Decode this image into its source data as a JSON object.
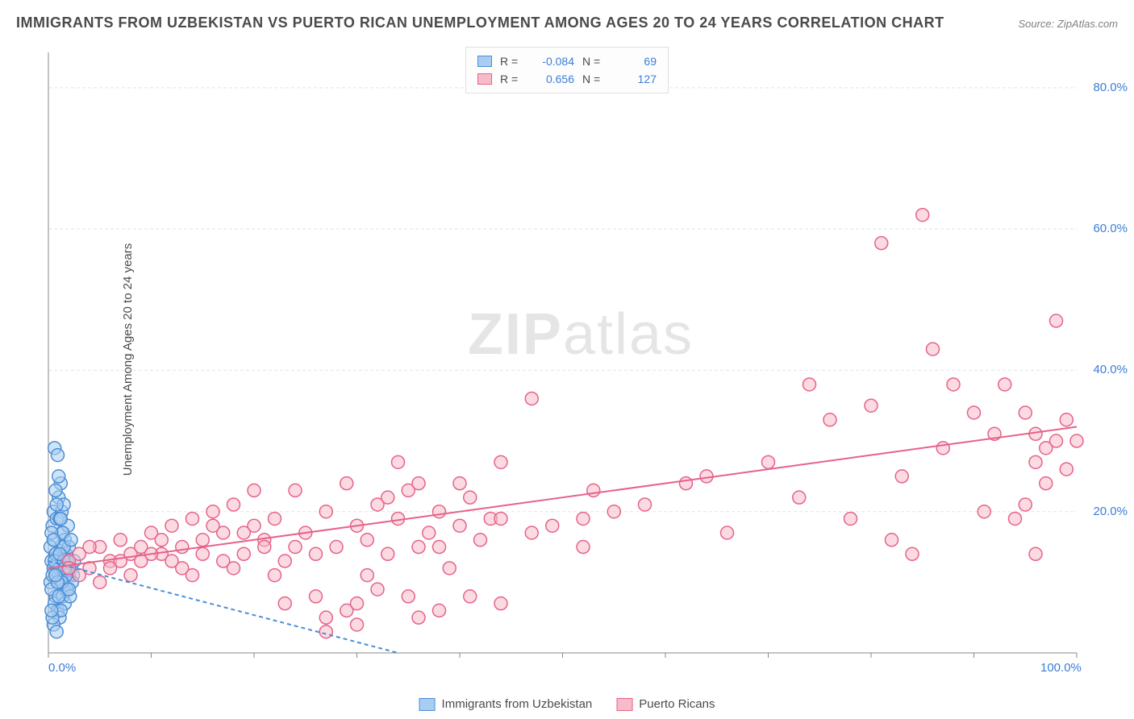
{
  "title": "IMMIGRANTS FROM UZBEKISTAN VS PUERTO RICAN UNEMPLOYMENT AMONG AGES 20 TO 24 YEARS CORRELATION CHART",
  "source": "Source: ZipAtlas.com",
  "ylabel": "Unemployment Among Ages 20 to 24 years",
  "watermark_a": "ZIP",
  "watermark_b": "atlas",
  "chart": {
    "type": "scatter",
    "xlim": [
      0,
      100
    ],
    "ylim": [
      0,
      85
    ],
    "x_ticks": [
      {
        "v": 0,
        "label": "0.0%"
      },
      {
        "v": 100,
        "label": "100.0%"
      }
    ],
    "y_ticks": [
      {
        "v": 20,
        "label": "20.0%"
      },
      {
        "v": 40,
        "label": "40.0%"
      },
      {
        "v": 60,
        "label": "60.0%"
      },
      {
        "v": 80,
        "label": "80.0%"
      }
    ],
    "grid_color": "#e4e4e4",
    "axis_color": "#888888",
    "background_color": "#ffffff",
    "marker_radius": 8,
    "marker_stroke_width": 1.5,
    "trend_line_width": 2,
    "tick_label_color": "#3b7dd8",
    "tick_label_fontsize": 15,
    "series": [
      {
        "id": "uzbekistan",
        "label": "Immigrants from Uzbekistan",
        "fill": "#a9cdf0",
        "fill_opacity": 0.55,
        "stroke": "#4a8ed6",
        "r_value": "-0.084",
        "n_value": "69",
        "trend": {
          "x1": 0,
          "y1": 13,
          "x2": 34,
          "y2": 0,
          "dash": "5,4"
        },
        "points": [
          [
            0.3,
            13
          ],
          [
            0.5,
            12
          ],
          [
            0.8,
            14
          ],
          [
            1.0,
            11
          ],
          [
            1.2,
            15
          ],
          [
            1.4,
            10
          ],
          [
            0.6,
            16
          ],
          [
            0.9,
            13
          ],
          [
            1.1,
            12
          ],
          [
            1.3,
            17
          ],
          [
            1.5,
            9
          ],
          [
            1.7,
            14
          ],
          [
            2.0,
            11
          ],
          [
            0.4,
            18
          ],
          [
            0.7,
            8
          ],
          [
            1.8,
            13
          ],
          [
            2.2,
            12
          ],
          [
            0.2,
            10
          ],
          [
            1.6,
            16
          ],
          [
            2.4,
            11
          ],
          [
            0.5,
            20
          ],
          [
            1.0,
            22
          ],
          [
            1.3,
            20
          ],
          [
            0.8,
            19
          ],
          [
            1.5,
            21
          ],
          [
            1.2,
            24
          ],
          [
            0.6,
            7
          ],
          [
            0.9,
            6
          ],
          [
            1.1,
            5
          ],
          [
            1.4,
            8
          ],
          [
            0.3,
            9
          ],
          [
            2.0,
            15
          ],
          [
            2.3,
            10
          ],
          [
            1.9,
            18
          ],
          [
            0.7,
            23
          ],
          [
            1.0,
            25
          ],
          [
            0.4,
            11
          ],
          [
            1.6,
            7
          ],
          [
            1.8,
            9
          ],
          [
            0.5,
            4
          ],
          [
            0.8,
            3
          ],
          [
            1.2,
            6
          ],
          [
            0.2,
            15
          ],
          [
            2.5,
            13
          ],
          [
            2.1,
            8
          ],
          [
            0.6,
            29
          ],
          [
            1.4,
            17
          ],
          [
            0.9,
            28
          ],
          [
            1.1,
            19
          ],
          [
            1.5,
            15
          ],
          [
            0.3,
            17
          ],
          [
            0.7,
            14
          ],
          [
            2.2,
            16
          ],
          [
            1.7,
            11
          ],
          [
            0.4,
            5
          ],
          [
            1.0,
            8
          ],
          [
            1.3,
            10
          ],
          [
            0.5,
            16
          ],
          [
            1.9,
            12
          ],
          [
            0.8,
            21
          ],
          [
            1.2,
            19
          ],
          [
            0.6,
            13
          ],
          [
            2.0,
            9
          ],
          [
            1.5,
            13
          ],
          [
            0.9,
            10
          ],
          [
            1.1,
            14
          ],
          [
            0.3,
            6
          ],
          [
            1.6,
            12
          ],
          [
            0.7,
            11
          ]
        ]
      },
      {
        "id": "puerto_rican",
        "label": "Puerto Ricans",
        "fill": "#f7bcc9",
        "fill_opacity": 0.55,
        "stroke": "#e6628b",
        "r_value": "0.656",
        "n_value": "127",
        "trend": {
          "x1": 0,
          "y1": 12,
          "x2": 100,
          "y2": 32,
          "dash": null
        },
        "points": [
          [
            2,
            13
          ],
          [
            3,
            14
          ],
          [
            4,
            12
          ],
          [
            5,
            15
          ],
          [
            6,
            13
          ],
          [
            7,
            16
          ],
          [
            8,
            14
          ],
          [
            9,
            15
          ],
          [
            10,
            17
          ],
          [
            11,
            14
          ],
          [
            12,
            18
          ],
          [
            13,
            15
          ],
          [
            14,
            19
          ],
          [
            15,
            16
          ],
          [
            16,
            20
          ],
          [
            17,
            17
          ],
          [
            18,
            21
          ],
          [
            19,
            14
          ],
          [
            20,
            18
          ],
          [
            21,
            16
          ],
          [
            22,
            19
          ],
          [
            23,
            13
          ],
          [
            24,
            23
          ],
          [
            25,
            17
          ],
          [
            26,
            14
          ],
          [
            27,
            20
          ],
          [
            28,
            15
          ],
          [
            29,
            24
          ],
          [
            30,
            18
          ],
          [
            31,
            16
          ],
          [
            32,
            21
          ],
          [
            33,
            14
          ],
          [
            34,
            19
          ],
          [
            35,
            23
          ],
          [
            36,
            15
          ],
          [
            37,
            17
          ],
          [
            38,
            20
          ],
          [
            39,
            12
          ],
          [
            40,
            18
          ],
          [
            41,
            22
          ],
          [
            42,
            16
          ],
          [
            43,
            19
          ],
          [
            44,
            27
          ],
          [
            23,
            7
          ],
          [
            26,
            8
          ],
          [
            29,
            6
          ],
          [
            32,
            9
          ],
          [
            35,
            8
          ],
          [
            30,
            7
          ],
          [
            41,
            8
          ],
          [
            44,
            7
          ],
          [
            38,
            6
          ],
          [
            27,
            5
          ],
          [
            34,
            27
          ],
          [
            31,
            11
          ],
          [
            55,
            20
          ],
          [
            47,
            36
          ],
          [
            53,
            23
          ],
          [
            58,
            21
          ],
          [
            52,
            15
          ],
          [
            49,
            18
          ],
          [
            40,
            24
          ],
          [
            44,
            19
          ],
          [
            36,
            5
          ],
          [
            38,
            15
          ],
          [
            30,
            4
          ],
          [
            27,
            3
          ],
          [
            62,
            24
          ],
          [
            66,
            17
          ],
          [
            64,
            25
          ],
          [
            70,
            27
          ],
          [
            73,
            22
          ],
          [
            76,
            33
          ],
          [
            78,
            19
          ],
          [
            74,
            38
          ],
          [
            82,
            16
          ],
          [
            81,
            58
          ],
          [
            80,
            35
          ],
          [
            85,
            62
          ],
          [
            86,
            43
          ],
          [
            88,
            38
          ],
          [
            84,
            14
          ],
          [
            83,
            25
          ],
          [
            87,
            29
          ],
          [
            90,
            34
          ],
          [
            91,
            20
          ],
          [
            92,
            31
          ],
          [
            93,
            38
          ],
          [
            94,
            19
          ],
          [
            95,
            34
          ],
          [
            96,
            27
          ],
          [
            96,
            31
          ],
          [
            97,
            29
          ],
          [
            98,
            47
          ],
          [
            99,
            33
          ],
          [
            98,
            30
          ],
          [
            97,
            24
          ],
          [
            96,
            14
          ],
          [
            95,
            21
          ],
          [
            99,
            26
          ],
          [
            100,
            30
          ],
          [
            3,
            11
          ],
          [
            5,
            10
          ],
          [
            7,
            13
          ],
          [
            4,
            15
          ],
          [
            6,
            12
          ],
          [
            8,
            11
          ],
          [
            10,
            14
          ],
          [
            2,
            12
          ],
          [
            9,
            13
          ],
          [
            11,
            16
          ],
          [
            13,
            12
          ],
          [
            15,
            14
          ],
          [
            17,
            13
          ],
          [
            19,
            17
          ],
          [
            21,
            15
          ],
          [
            12,
            13
          ],
          [
            14,
            11
          ],
          [
            16,
            18
          ],
          [
            18,
            12
          ],
          [
            20,
            23
          ],
          [
            22,
            11
          ],
          [
            24,
            15
          ],
          [
            36,
            24
          ],
          [
            33,
            22
          ],
          [
            47,
            17
          ],
          [
            52,
            19
          ]
        ]
      }
    ]
  },
  "legend_top": {
    "r_label": "R  =",
    "n_label": "N  ="
  },
  "legend_bottom": {
    "items": [
      {
        "series": "uzbekistan"
      },
      {
        "series": "puerto_rican"
      }
    ]
  }
}
